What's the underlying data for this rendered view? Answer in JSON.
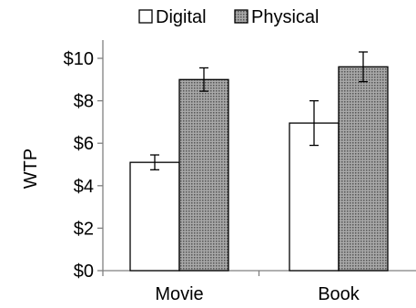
{
  "chart_data": {
    "type": "bar",
    "categories": [
      "Movie",
      "Book"
    ],
    "series": [
      {
        "name": "Digital",
        "values": [
          5.1,
          6.95
        ],
        "error": [
          0.35,
          1.05
        ],
        "fill": "#ffffff",
        "pattern": "none"
      },
      {
        "name": "Physical",
        "values": [
          9.0,
          9.6
        ],
        "error": [
          0.55,
          0.7
        ],
        "fill": "#9e9e9e",
        "pattern": "dots"
      }
    ],
    "ylabel": "WTP",
    "xlabel": "",
    "ylim": [
      0,
      10
    ],
    "yticks": [
      0,
      2,
      4,
      6,
      8,
      10
    ],
    "ytick_labels": [
      "$0",
      "$2",
      "$4",
      "$6",
      "$8",
      "$10"
    ],
    "legend_position": "top",
    "grid": false,
    "colors": {
      "axis": "#7f7f7f",
      "bar_stroke": "#000000",
      "physical_fill": "#9e9e9e",
      "physical_dot": "#5a5a5a"
    }
  }
}
